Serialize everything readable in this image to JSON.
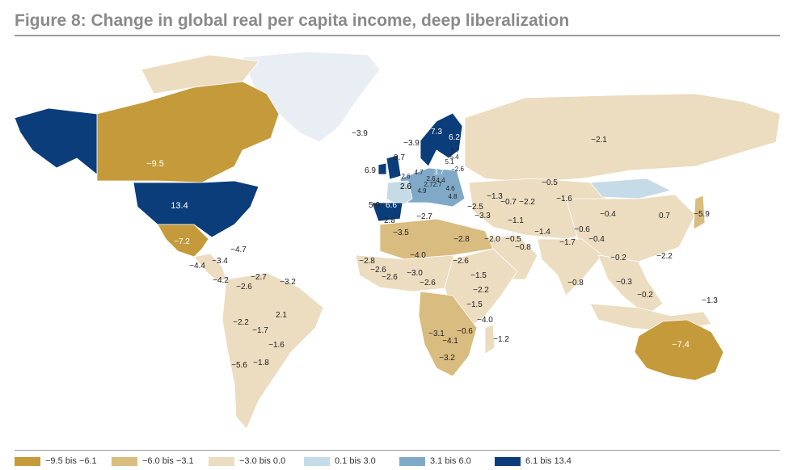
{
  "title": "Figure 8: Change in global real per capita income, deep liberalization",
  "legend": [
    {
      "label": "−9.5 bis −6.1",
      "color": "#c49a3a"
    },
    {
      "label": "−6.0 bis −3.1",
      "color": "#d9bc7f"
    },
    {
      "label": "−3.0 bis 0.0",
      "color": "#ecdcc0"
    },
    {
      "label": "0.1 bis 3.0",
      "color": "#c6dbe8"
    },
    {
      "label": "3.1 bis 6.0",
      "color": "#7fa9c7"
    },
    {
      "label": "6.1 bis 13.4",
      "color": "#0b3d7a"
    }
  ],
  "colors": {
    "ocean": "#ffffff",
    "no_data": "#e8eef3",
    "border": "#ffffff"
  },
  "map_labels": [
    {
      "name": "canada",
      "value": "−9.5"
    },
    {
      "name": "usa",
      "value": "13.4"
    },
    {
      "name": "mexico",
      "value": "−7.2"
    },
    {
      "name": "cuba",
      "value": "−4.7"
    },
    {
      "name": "central-america-1",
      "value": "−4.4"
    },
    {
      "name": "central-america-2",
      "value": "−3.4"
    },
    {
      "name": "panama",
      "value": "−4.2"
    },
    {
      "name": "colombia",
      "value": "−2.6"
    },
    {
      "name": "venezuela",
      "value": "−2.7"
    },
    {
      "name": "guyana",
      "value": "−3.2"
    },
    {
      "name": "brazil",
      "value": "2.1"
    },
    {
      "name": "peru",
      "value": "−2.2"
    },
    {
      "name": "bolivia",
      "value": "−1.7"
    },
    {
      "name": "paraguay",
      "value": "−1.6"
    },
    {
      "name": "chile",
      "value": "−5.6"
    },
    {
      "name": "argentina",
      "value": "−1.8"
    },
    {
      "name": "iceland",
      "value": "−3.9"
    },
    {
      "name": "norway",
      "value": "−3.9"
    },
    {
      "name": "sweden",
      "value": "7.3"
    },
    {
      "name": "finland",
      "value": "6.2"
    },
    {
      "name": "ireland",
      "value": "6.9"
    },
    {
      "name": "uk",
      "value": "9.7"
    },
    {
      "name": "estonia",
      "value": "5.7"
    },
    {
      "name": "latvia",
      "value": "5.4"
    },
    {
      "name": "lithuania",
      "value": "5.1"
    },
    {
      "name": "belarus",
      "value": "−2.6"
    },
    {
      "name": "benelux",
      "value": "2.6"
    },
    {
      "name": "germany",
      "value": "4.7"
    },
    {
      "name": "poland",
      "value": "3.7"
    },
    {
      "name": "netherlands",
      "value": "2.6"
    },
    {
      "name": "czechia",
      "value": "2.6"
    },
    {
      "name": "slovakia",
      "value": "2.7"
    },
    {
      "name": "austria",
      "value": "2.7"
    },
    {
      "name": "hungary",
      "value": "4.4"
    },
    {
      "name": "slovenia",
      "value": "4.9"
    },
    {
      "name": "romania",
      "value": "4.6"
    },
    {
      "name": "bulgaria",
      "value": "4.8"
    },
    {
      "name": "france",
      "value": "2.6"
    },
    {
      "name": "portugal",
      "value": "5.0"
    },
    {
      "name": "spain",
      "value": "6.6"
    },
    {
      "name": "russia",
      "value": "−2.1"
    },
    {
      "name": "kazakhstan",
      "value": "−0.5"
    },
    {
      "name": "georgia",
      "value": "−1.3"
    },
    {
      "name": "armenia",
      "value": "−0.7"
    },
    {
      "name": "azerbaijan",
      "value": "−2.2"
    },
    {
      "name": "turkey",
      "value": "−2.5"
    },
    {
      "name": "syria",
      "value": "−3.3"
    },
    {
      "name": "iran",
      "value": "−1.1"
    },
    {
      "name": "uzbekistan",
      "value": "−1.6"
    },
    {
      "name": "afghanistan",
      "value": "−1.4"
    },
    {
      "name": "pakistan",
      "value": "−1.7"
    },
    {
      "name": "nepal",
      "value": "−0.6"
    },
    {
      "name": "bangladesh",
      "value": "−0.4"
    },
    {
      "name": "china",
      "value": "−0.4"
    },
    {
      "name": "korea",
      "value": "0.7"
    },
    {
      "name": "japan",
      "value": "−5.9"
    },
    {
      "name": "saudi-arabia",
      "value": "−2.0"
    },
    {
      "name": "gulf",
      "value": "−0.5"
    },
    {
      "name": "oman",
      "value": "−0.8"
    },
    {
      "name": "india",
      "value": "−0.8"
    },
    {
      "name": "thailand",
      "value": "−0.2"
    },
    {
      "name": "philippines",
      "value": "−2.2"
    },
    {
      "name": "malaysia",
      "value": "−0.3"
    },
    {
      "name": "indonesia",
      "value": "−0.2"
    },
    {
      "name": "png",
      "value": "−1.3"
    },
    {
      "name": "australia",
      "value": "−7.4"
    },
    {
      "name": "morocco",
      "value": "−2.8"
    },
    {
      "name": "algeria",
      "value": "−3.5"
    },
    {
      "name": "tunisia",
      "value": "−2.7"
    },
    {
      "name": "egypt",
      "value": "−2.8"
    },
    {
      "name": "mali",
      "value": "−4.0"
    },
    {
      "name": "senegal",
      "value": "−2.8"
    },
    {
      "name": "guinea",
      "value": "−2.6"
    },
    {
      "name": "sierra-leone",
      "value": "−2.6"
    },
    {
      "name": "ghana",
      "value": "−3.0"
    },
    {
      "name": "nigeria",
      "value": "−2.6"
    },
    {
      "name": "sudan",
      "value": "−2.6"
    },
    {
      "name": "ethiopia",
      "value": "−1.5"
    },
    {
      "name": "kenya",
      "value": "−2.2"
    },
    {
      "name": "tanzania",
      "value": "−1.5"
    },
    {
      "name": "mozambique",
      "value": "−4.0"
    },
    {
      "name": "zambia",
      "value": "−0.6"
    },
    {
      "name": "namibia",
      "value": "−3.1"
    },
    {
      "name": "botswana",
      "value": "−4.1"
    },
    {
      "name": "south-africa",
      "value": "−3.2"
    },
    {
      "name": "madagascar",
      "value": "−1.2"
    }
  ]
}
